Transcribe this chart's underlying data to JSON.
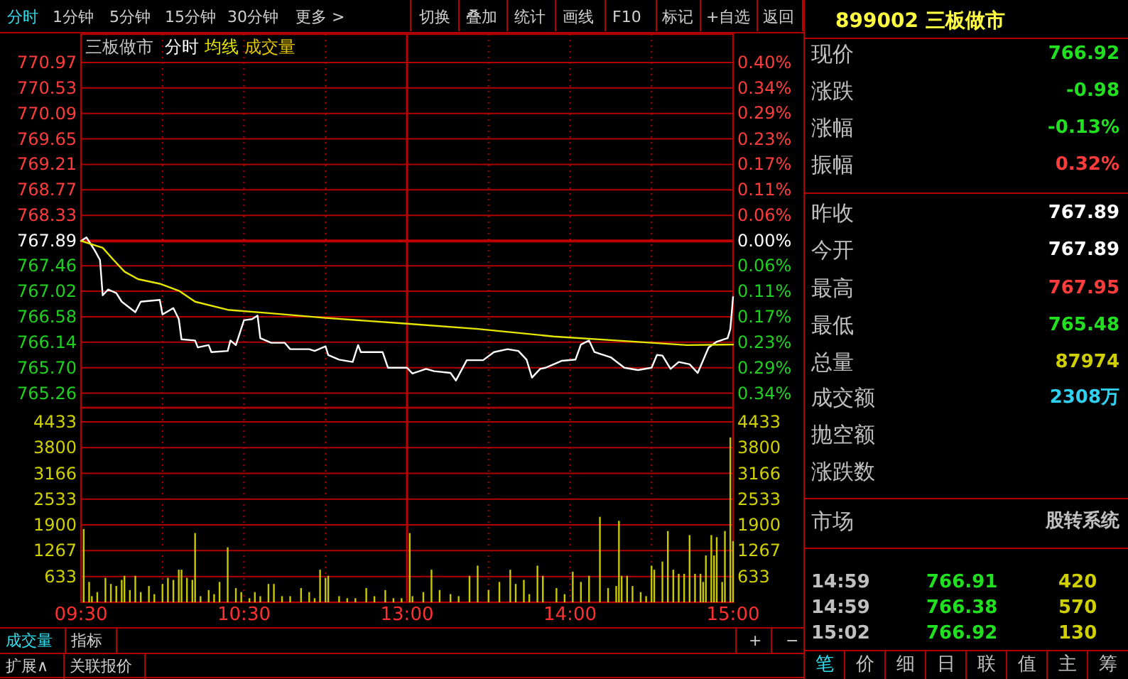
{
  "chart_data": [
    {
      "type": "line",
      "title": "三板做市",
      "legend": "top left",
      "annotations": [
        "成交量"
      ],
      "categories": [
        "09:30",
        null,
        null,
        null,
        null,
        null,
        null,
        null,
        null,
        null,
        null,
        null,
        null,
        null,
        null,
        null,
        null,
        null,
        null,
        null,
        null,
        null,
        null,
        null,
        null,
        null,
        null,
        null,
        null,
        null,
        null,
        null,
        null,
        null,
        null,
        null,
        null,
        null,
        null,
        null,
        null,
        null,
        null,
        null,
        null,
        null,
        null,
        null,
        null,
        null,
        null,
        null,
        null,
        null,
        null,
        null,
        null,
        null,
        null,
        null,
        "10:30",
        null,
        null,
        null,
        null,
        null,
        null,
        null,
        null,
        null,
        null,
        null,
        null,
        null,
        null,
        null,
        null,
        null,
        null,
        null,
        null,
        null,
        null,
        null,
        null,
        null,
        null,
        null,
        null,
        null,
        null,
        null,
        null,
        null,
        null,
        null,
        null,
        null,
        null,
        null,
        null,
        null,
        null,
        null,
        null,
        null,
        null,
        null,
        null,
        null,
        null,
        null,
        null,
        null,
        null,
        null,
        null,
        null,
        null,
        null,
        "13:00",
        null,
        null,
        null,
        null,
        null,
        null,
        null,
        null,
        null,
        null,
        null,
        null,
        null,
        null,
        null,
        null,
        null,
        null,
        null,
        null,
        null,
        null,
        null,
        null,
        null,
        null,
        null,
        null,
        null,
        null,
        null,
        null,
        null,
        null,
        null,
        null,
        null,
        null,
        null,
        null,
        null,
        null,
        null,
        null,
        null,
        null,
        null,
        null,
        null,
        null,
        null,
        null,
        null,
        null,
        null,
        null,
        null,
        null,
        null,
        "14:00",
        null,
        null,
        null,
        null,
        null,
        null,
        null,
        null,
        null,
        null,
        null,
        null,
        null,
        null,
        null,
        null,
        null,
        null,
        null,
        null,
        null,
        null,
        null,
        null,
        null,
        null,
        null,
        null,
        null,
        null,
        null,
        null,
        null,
        null,
        null,
        null,
        null,
        null,
        null,
        null,
        null,
        null,
        null,
        null,
        null,
        null,
        null,
        null,
        null,
        null,
        null,
        null,
        null,
        null,
        null,
        null,
        null,
        null,
        null,
        "15:00"
      ],
      "ylim": [
        765.01,
        771.46
      ],
      "yticks": [
        770.97,
        770.53,
        770.09,
        769.65,
        769.21,
        768.77,
        768.33,
        767.89,
        767.46,
        767.02,
        766.58,
        766.14,
        {
          "value": 765.7,
          "label": "765.70"
        },
        765.26
      ],
      "y2lim": [
        -0.375,
        0.465
      ],
      "y2ticks": [
        {
          "value": 0.401,
          "label": "0.40%"
        },
        {
          "value": 0.344,
          "label": "0.34%"
        },
        {
          "value": 0.287,
          "label": "0.29%"
        },
        {
          "value": 0.229,
          "label": "0.23%"
        },
        {
          "value": 0.172,
          "label": "0.17%"
        },
        {
          "value": 0.115,
          "label": "0.11%"
        },
        {
          "value": 0.057,
          "label": "0.06%"
        },
        {
          "value": 0,
          "label": "0.00%"
        },
        {
          "value": -0.056,
          "label": "0.06%"
        },
        {
          "value": -0.113,
          "label": "0.11%"
        },
        {
          "value": -0.171,
          "label": "0.17%"
        },
        {
          "value": -0.228,
          "label": "0.23%"
        },
        {
          "value": -0.285,
          "label": "0.29%"
        },
        {
          "value": -0.343,
          "label": "0.34%"
        }
      ],
      "tick_labels": "y",
      "grid": true,
      "ref_lines": [
        {
          "axis": "y",
          "value": 767.89,
          "color": "#c00000"
        },
        {
          "axis": "x",
          "value": "13:00",
          "color": "#c00000"
        }
      ],
      "series": [
        {
          "name": "分时",
          "color": "#ffffff",
          "values": [
            767.89,
            null,
            767.95,
            null,
            null,
            767.73,
            null,
            767.56,
            766.95,
            null,
            767.05,
            null,
            null,
            766.99,
            null,
            766.84,
            null,
            null,
            null,
            null,
            766.66,
            null,
            766.84,
            null,
            null,
            null,
            null,
            null,
            null,
            766.87,
            766.62,
            null,
            null,
            null,
            766.73,
            null,
            766.54,
            766.19,
            null,
            null,
            null,
            null,
            766.17,
            766.05,
            null,
            null,
            null,
            766.09,
            765.97,
            null,
            null,
            null,
            null,
            null,
            765.99,
            766.17,
            null,
            766.09,
            null,
            null,
            766.52,
            null,
            null,
            766.54,
            null,
            766.6,
            766.21,
            null,
            null,
            null,
            766.13,
            null,
            null,
            null,
            null,
            766.13,
            null,
            766.02,
            null,
            null,
            null,
            null,
            null,
            null,
            766.02,
            null,
            765.99,
            null,
            null,
            null,
            766.07,
            765.92,
            null,
            null,
            null,
            765.84,
            null,
            null,
            null,
            null,
            765.8,
            null,
            766.09,
            765.97,
            null,
            null,
            null,
            null,
            null,
            null,
            null,
            765.97,
            null,
            765.7,
            null,
            null,
            null,
            null,
            null,
            null,
            765.7,
            null,
            765.6,
            null,
            null,
            null,
            null,
            765.68,
            null,
            null,
            765.64,
            null,
            null,
            null,
            null,
            null,
            765.61,
            null,
            765.48,
            null,
            null,
            null,
            765.83,
            null,
            null,
            null,
            null,
            null,
            765.83,
            null,
            null,
            null,
            765.97,
            null,
            null,
            null,
            null,
            766.02,
            null,
            null,
            null,
            765.99,
            null,
            null,
            765.84,
            null,
            765.53,
            null,
            null,
            765.68,
            null,
            765.7,
            null,
            null,
            765.76,
            null,
            null,
            765.82,
            null,
            null,
            null,
            null,
            765.84,
            null,
            766.1,
            null,
            null,
            766.17,
            null,
            765.97,
            null,
            null,
            null,
            null,
            null,
            765.88,
            null,
            null,
            null,
            null,
            765.7,
            null,
            null,
            null,
            null,
            765.66,
            null,
            null,
            null,
            null,
            765.7,
            null,
            765.92,
            null,
            765.91,
            null,
            null,
            765.68,
            null,
            null,
            765.8,
            null,
            null,
            null,
            765.76,
            null,
            null,
            765.61,
            null,
            null,
            null,
            766.05,
            null,
            null,
            766.15,
            null,
            null,
            null,
            766.21,
            766.37,
            766.92
          ]
        },
        {
          "name": "均线",
          "color": "#e6e600",
          "values": [
            767.89,
            null,
            null,
            null,
            null,
            null,
            null,
            null,
            767.77,
            null,
            null,
            null,
            767.56,
            null,
            null,
            null,
            767.36,
            null,
            null,
            null,
            null,
            767.23,
            null,
            null,
            null,
            null,
            null,
            null,
            null,
            767.15,
            null,
            null,
            null,
            null,
            null,
            null,
            767.03,
            null,
            null,
            null,
            null,
            null,
            766.84,
            null,
            null,
            null,
            null,
            null,
            null,
            null,
            null,
            null,
            null,
            null,
            766.7,
            null,
            null,
            null,
            null,
            null,
            null,
            null,
            null,
            null,
            null,
            null,
            null,
            null,
            null,
            null,
            766.64,
            null,
            null,
            null,
            null,
            null,
            null,
            null,
            null,
            null,
            null,
            null,
            null,
            null,
            null,
            null,
            null,
            null,
            null,
            null,
            766.56,
            null,
            null,
            null,
            null,
            null,
            null,
            null,
            null,
            null,
            null,
            null,
            null,
            null,
            null,
            null,
            null,
            null,
            null,
            null,
            null,
            null,
            null,
            null,
            null,
            null,
            null,
            null,
            null,
            null,
            766.46,
            null,
            null,
            null,
            null,
            null,
            null,
            null,
            null,
            null,
            null,
            null,
            null,
            null,
            null,
            null,
            null,
            null,
            null,
            null,
            null,
            null,
            null,
            null,
            null,
            null,
            766.37,
            null,
            null,
            null,
            null,
            null,
            null,
            null,
            null,
            null,
            null,
            null,
            null,
            null,
            null,
            null,
            null,
            null,
            null,
            null,
            null,
            null,
            null,
            null,
            null,
            null,
            null,
            null,
            766.24,
            null,
            null,
            null,
            null,
            null,
            null,
            null,
            null,
            null,
            null,
            null,
            null,
            null,
            null,
            null,
            null,
            null,
            null,
            null,
            null,
            null,
            null,
            766.17,
            null,
            null,
            null,
            null,
            null,
            null,
            null,
            null,
            null,
            null,
            null,
            null,
            null,
            null,
            null,
            null,
            null,
            null,
            null,
            null,
            null,
            null,
            null,
            null,
            null,
            766.09,
            null,
            null,
            null,
            null,
            null,
            null,
            null,
            null,
            null,
            null,
            null,
            null,
            null,
            null,
            null,
            null,
            766.1
          ]
        }
      ]
    },
    {
      "type": "bar",
      "color": "#c8c800",
      "categories": [
        "09:30",
        null,
        null,
        null,
        null,
        null,
        null,
        null,
        null,
        null,
        null,
        null,
        null,
        null,
        null,
        null,
        null,
        null,
        null,
        null,
        null,
        null,
        null,
        null,
        null,
        null,
        null,
        null,
        null,
        null,
        null,
        null,
        null,
        null,
        null,
        null,
        null,
        null,
        null,
        null,
        null,
        null,
        null,
        null,
        null,
        null,
        null,
        null,
        null,
        null,
        null,
        null,
        null,
        null,
        null,
        null,
        null,
        null,
        null,
        null,
        "10:30",
        null,
        null,
        null,
        null,
        null,
        null,
        null,
        null,
        null,
        null,
        null,
        null,
        null,
        null,
        null,
        null,
        null,
        null,
        null,
        null,
        null,
        null,
        null,
        null,
        null,
        null,
        null,
        null,
        null,
        null,
        null,
        null,
        null,
        null,
        null,
        null,
        null,
        null,
        null,
        null,
        null,
        null,
        null,
        null,
        null,
        null,
        null,
        null,
        null,
        null,
        null,
        null,
        null,
        null,
        null,
        null,
        null,
        null,
        null,
        "13:00",
        null,
        null,
        null,
        null,
        null,
        null,
        null,
        null,
        null,
        null,
        null,
        null,
        null,
        null,
        null,
        null,
        null,
        null,
        null,
        null,
        null,
        null,
        null,
        null,
        null,
        null,
        null,
        null,
        null,
        null,
        null,
        null,
        null,
        null,
        null,
        null,
        null,
        null,
        null,
        null,
        null,
        null,
        null,
        null,
        null,
        null,
        null,
        null,
        null,
        null,
        null,
        null,
        null,
        null,
        null,
        null,
        null,
        null,
        null,
        "14:00",
        null,
        null,
        null,
        null,
        null,
        null,
        null,
        null,
        null,
        null,
        null,
        null,
        null,
        null,
        null,
        null,
        null,
        null,
        null,
        null,
        null,
        null,
        null,
        null,
        null,
        null,
        null,
        null,
        null,
        null,
        null,
        null,
        null,
        null,
        null,
        null,
        null,
        null,
        null,
        null,
        null,
        null,
        null,
        null,
        null,
        null,
        null,
        null,
        null,
        null,
        null,
        null,
        null,
        null,
        null,
        null,
        null,
        null,
        null,
        "15:00"
      ],
      "values": [
        null,
        1800,
        null,
        500,
        150,
        null,
        250,
        null,
        null,
        600,
        null,
        450,
        null,
        400,
        null,
        550,
        650,
        null,
        300,
        null,
        650,
        null,
        250,
        null,
        null,
        400,
        null,
        200,
        null,
        null,
        450,
        null,
        600,
        null,
        550,
        null,
        800,
        800,
        null,
        600,
        null,
        550,
        1700,
        null,
        150,
        null,
        null,
        300,
        null,
        200,
        null,
        500,
        null,
        null,
        1350,
        null,
        null,
        350,
        null,
        250,
        null,
        null,
        100,
        null,
        250,
        null,
        150,
        null,
        null,
        450,
        null,
        450,
        null,
        null,
        150,
        null,
        null,
        150,
        null,
        null,
        null,
        350,
        null,
        null,
        250,
        null,
        100,
        null,
        800,
        null,
        600,
        650,
        null,
        null,
        null,
        150,
        null,
        null,
        100,
        null,
        null,
        100,
        null,
        null,
        null,
        350,
        null,
        null,
        150,
        null,
        null,
        null,
        300,
        null,
        null,
        100,
        null,
        null,
        100,
        null,
        null,
        1700,
        150,
        null,
        null,
        null,
        250,
        null,
        null,
        800,
        null,
        null,
        300,
        null,
        null,
        null,
        200,
        null,
        null,
        150,
        null,
        null,
        null,
        650,
        null,
        null,
        900,
        null,
        null,
        null,
        300,
        null,
        null,
        null,
        500,
        null,
        null,
        null,
        800,
        null,
        450,
        null,
        null,
        550,
        null,
        200,
        null,
        null,
        900,
        null,
        650,
        null,
        null,
        null,
        null,
        350,
        null,
        null,
        200,
        null,
        null,
        750,
        null,
        null,
        500,
        null,
        null,
        650,
        null,
        null,
        null,
        2100,
        null,
        null,
        350,
        null,
        null,
        400,
        2000,
        650,
        null,
        650,
        null,
        400,
        null,
        null,
        250,
        null,
        150,
        null,
        900,
        800,
        null,
        null,
        1000,
        null,
        1750,
        null,
        800,
        null,
        700,
        null,
        700,
        null,
        1650,
        null,
        700,
        null,
        700,
        500,
        1150,
        null,
        1650,
        1150,
        1600,
        null,
        500,
        1750,
        null,
        4050,
        1500
      ],
      "ylim": [
        0,
        4780
      ],
      "yticks": [
        633,
        1267,
        1900,
        2533,
        3166,
        3800,
        4433
      ],
      "y2lim": [
        0,
        4780
      ],
      "y2ticks": [
        633,
        1267,
        1900,
        2533,
        3166,
        3800,
        4433
      ],
      "grid": true,
      "ref_lines": [
        {
          "axis": "x",
          "value": "13:00",
          "color": "#c00000"
        }
      ]
    },
    {
      "type": "other",
      "title": "899002 三板做市",
      "categories": [
        "现价",
        "涨跌",
        "涨幅",
        "振幅",
        "昨收",
        "今开",
        "最高",
        "最低",
        "总量",
        "成交额",
        "抛空额",
        "涨跌数",
        "市场"
      ],
      "value_labels": [
        "766.92",
        "-0.98",
        "-0.13%",
        "0.32%",
        "767.89",
        "767.89",
        "767.95",
        "765.48",
        "87974",
        "2308万",
        null,
        null,
        "股转系统"
      ],
      "colors": [
        "#20e020",
        "#20e020",
        "#20e020",
        "#ff3c3c",
        "#ffffff",
        "#ffffff",
        "#ff3c3c",
        "#20e020",
        "#d0d000",
        "#30d0f0",
        null,
        null,
        "#c0c0c0"
      ],
      "annotations": [
        "14:59",
        "766.91",
        "420",
        "14:59",
        "766.38",
        "570",
        "15:02",
        "766.92",
        "130",
        "笔",
        "价",
        "细",
        "日",
        "联",
        "值",
        "主",
        "筹"
      ]
    },
    {
      "type": "other",
      "annotations": [
        "分时",
        "1分钟",
        "5分钟",
        "15分钟",
        "30分钟",
        "更多 >",
        "切换",
        "叠加",
        "统计",
        "画线",
        "F10",
        "标记",
        "+自选",
        "返回",
        "成交量",
        "指标",
        "扩展∧",
        "关联报价",
        "+",
        "−"
      ]
    }
  ]
}
